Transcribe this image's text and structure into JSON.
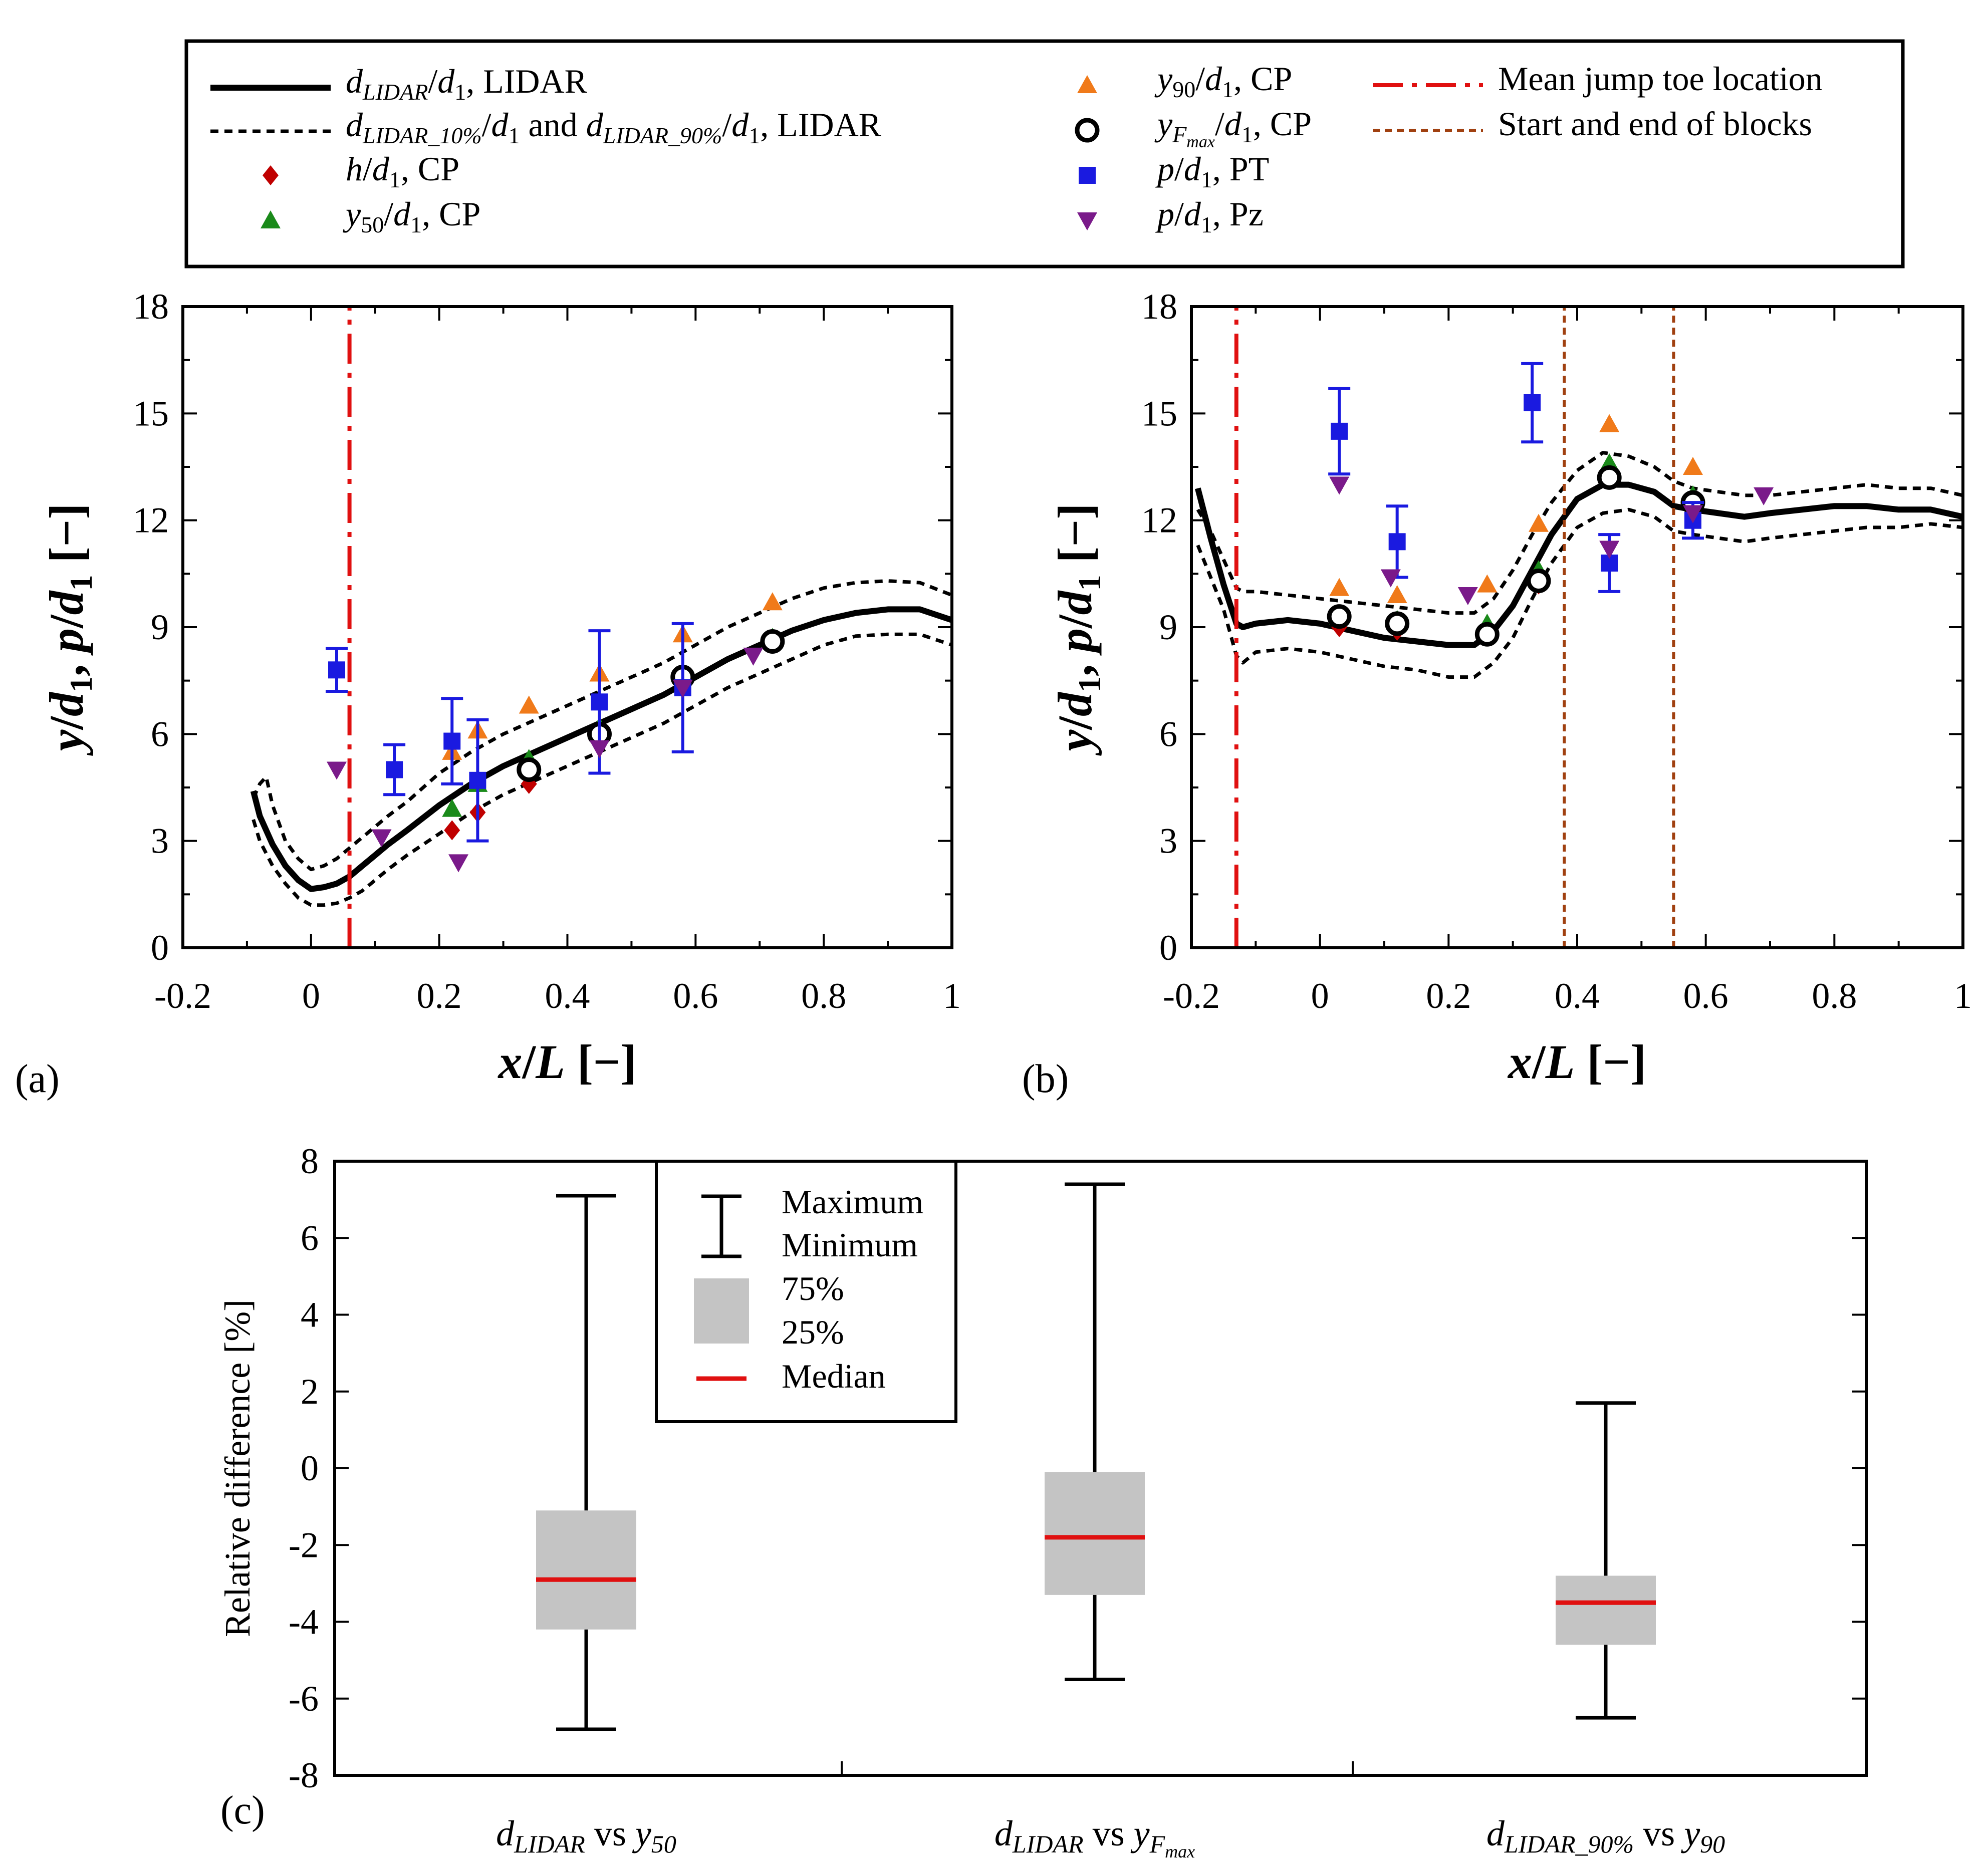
{
  "legend": {
    "entries": [
      {
        "key": "dLIDAR",
        "html": "<tspan font-style='italic'>d</tspan><tspan font-style='italic' font-size='46' dy='14'>LIDAR</tspan><tspan dy='-14'>/</tspan><tspan font-style='italic'>d</tspan><tspan font-size='46' dy='14'>1</tspan><tspan dy='-14'>, LIDAR</tspan>",
        "style": "solid"
      },
      {
        "key": "dLIDAR_pct",
        "html": "<tspan font-style='italic'>d</tspan><tspan font-style='italic' font-size='46' dy='14'>LIDAR_10%</tspan><tspan dy='-14'>/</tspan><tspan font-style='italic'>d</tspan><tspan font-size='46' dy='14'>1</tspan><tspan dy='-14'> and </tspan><tspan font-style='italic'>d</tspan><tspan font-style='italic' font-size='46' dy='14'>LIDAR_90%</tspan><tspan dy='-14'>/</tspan><tspan font-style='italic'>d</tspan><tspan font-size='46' dy='14'>1</tspan><tspan dy='-14'>, LIDAR</tspan>",
        "style": "dotted"
      },
      {
        "key": "h",
        "html": "<tspan font-style='italic'>h</tspan>/<tspan font-style='italic'>d</tspan><tspan font-size='46' dy='14'>1</tspan><tspan dy='-14'>, CP</tspan>",
        "style": "diamond",
        "color": "#c00000"
      },
      {
        "key": "y50",
        "html": "<tspan font-style='italic'>y</tspan><tspan font-size='46' dy='14'>50</tspan><tspan dy='-14'>/</tspan><tspan font-style='italic'>d</tspan><tspan font-size='46' dy='14'>1</tspan><tspan dy='-14'>, CP</tspan>",
        "style": "triangle",
        "color": "#1a8a1a"
      },
      {
        "key": "y90",
        "html": "<tspan font-style='italic'>y</tspan><tspan font-size='46' dy='14'>90</tspan><tspan dy='-14'>/</tspan><tspan font-style='italic'>d</tspan><tspan font-size='46' dy='14'>1</tspan><tspan dy='-14'>, CP</tspan>",
        "style": "triangle",
        "color": "#f07a1a"
      },
      {
        "key": "yFmax",
        "html": "<tspan font-style='italic'>y</tspan><tspan font-style='italic' font-size='46' dy='14'>F</tspan><tspan font-style='italic' font-size='34' dy='10'>max</tspan><tspan dy='-24'>/</tspan><tspan font-style='italic'>d</tspan><tspan font-size='46' dy='14'>1</tspan><tspan dy='-14'>, CP</tspan>",
        "style": "circle",
        "color": "#000000"
      },
      {
        "key": "pPT",
        "html": "<tspan font-style='italic'>p</tspan>/<tspan font-style='italic'>d</tspan><tspan font-size='46' dy='14'>1</tspan><tspan dy='-14'>, PT</tspan>",
        "style": "square",
        "color": "#1a1ae0"
      },
      {
        "key": "pPz",
        "html": "<tspan font-style='italic'>p</tspan>/<tspan font-style='italic'>d</tspan><tspan font-size='46' dy='14'>1</tspan><tspan dy='-14'>, Pz</tspan>",
        "style": "triangle-down",
        "color": "#7a1a8a"
      },
      {
        "key": "toe",
        "html": "Mean jump toe location",
        "style": "dashdot",
        "color": "#e01010"
      },
      {
        "key": "blocks",
        "html": "Start and end of blocks",
        "style": "shortdash",
        "color": "#a04010"
      }
    ]
  },
  "chart_data": [
    {
      "panel": "(a)",
      "type": "line",
      "xlabel": "x/L [−]",
      "ylabel": "y/d1, p/d1 [−]",
      "xlim": [
        -0.2,
        1.0
      ],
      "ylim": [
        0,
        18
      ],
      "xticks": [
        "-0.2",
        "0",
        "0.2",
        "0.4",
        "0.6",
        "0.8",
        "1"
      ],
      "yticks": [
        "0",
        "3",
        "6",
        "9",
        "12",
        "15",
        "18"
      ],
      "series": [
        {
          "name": "dLIDAR",
          "x": [
            -0.09,
            -0.08,
            -0.06,
            -0.04,
            -0.02,
            0.0,
            0.02,
            0.04,
            0.06,
            0.08,
            0.1,
            0.12,
            0.15,
            0.2,
            0.25,
            0.3,
            0.35,
            0.4,
            0.45,
            0.5,
            0.55,
            0.6,
            0.65,
            0.7,
            0.75,
            0.8,
            0.85,
            0.9,
            0.95,
            1.0
          ],
          "y": [
            4.4,
            3.7,
            2.9,
            2.3,
            1.9,
            1.65,
            1.7,
            1.8,
            2.0,
            2.3,
            2.6,
            2.9,
            3.3,
            4.0,
            4.6,
            5.1,
            5.5,
            5.9,
            6.3,
            6.7,
            7.1,
            7.6,
            8.1,
            8.5,
            8.9,
            9.2,
            9.4,
            9.5,
            9.5,
            9.2
          ]
        },
        {
          "name": "dLIDAR_10%",
          "x": [
            -0.09,
            -0.08,
            -0.06,
            -0.04,
            -0.02,
            0.0,
            0.02,
            0.04,
            0.06,
            0.08,
            0.1,
            0.12,
            0.15,
            0.2,
            0.25,
            0.3,
            0.35,
            0.4,
            0.45,
            0.5,
            0.55,
            0.6,
            0.65,
            0.7,
            0.75,
            0.8,
            0.85,
            0.9,
            0.95,
            1.0
          ],
          "y": [
            3.6,
            3.0,
            2.3,
            1.8,
            1.4,
            1.2,
            1.2,
            1.25,
            1.4,
            1.6,
            1.9,
            2.2,
            2.6,
            3.2,
            3.8,
            4.3,
            4.7,
            5.1,
            5.5,
            5.9,
            6.3,
            6.8,
            7.3,
            7.7,
            8.1,
            8.5,
            8.75,
            8.8,
            8.8,
            8.5
          ]
        },
        {
          "name": "dLIDAR_90%",
          "x": [
            -0.09,
            -0.08,
            -0.07,
            -0.06,
            -0.04,
            -0.02,
            0.0,
            0.02,
            0.04,
            0.06,
            0.08,
            0.1,
            0.12,
            0.15,
            0.2,
            0.25,
            0.3,
            0.35,
            0.4,
            0.45,
            0.5,
            0.55,
            0.6,
            0.65,
            0.7,
            0.75,
            0.8,
            0.85,
            0.9,
            0.95,
            1.0
          ],
          "y": [
            4.2,
            4.6,
            4.8,
            4.0,
            3.0,
            2.5,
            2.2,
            2.3,
            2.5,
            2.8,
            3.1,
            3.4,
            3.7,
            4.1,
            4.9,
            5.5,
            6.0,
            6.4,
            6.8,
            7.2,
            7.6,
            8.0,
            8.5,
            9.0,
            9.4,
            9.8,
            10.1,
            10.25,
            10.3,
            10.25,
            9.9
          ]
        },
        {
          "name": "h",
          "x": [
            0.22,
            0.26,
            0.34,
            0.45,
            0.58,
            0.72
          ],
          "y": [
            3.3,
            3.8,
            4.6,
            6.0,
            7.5,
            8.6
          ]
        },
        {
          "name": "y50",
          "x": [
            0.22,
            0.26,
            0.34,
            0.45,
            0.58,
            0.72
          ],
          "y": [
            3.9,
            4.6,
            5.3,
            6.2,
            7.7,
            8.7
          ]
        },
        {
          "name": "y90",
          "x": [
            0.22,
            0.26,
            0.34,
            0.45,
            0.58,
            0.72
          ],
          "y": [
            5.5,
            6.1,
            6.8,
            7.7,
            8.8,
            9.7
          ]
        },
        {
          "name": "yFmax",
          "x": [
            0.34,
            0.45,
            0.58,
            0.72
          ],
          "y": [
            5.0,
            6.0,
            7.6,
            8.6
          ]
        },
        {
          "name": "pPT",
          "x": [
            0.04,
            0.13,
            0.22,
            0.26,
            0.45,
            0.58
          ],
          "y": [
            7.8,
            5.0,
            5.8,
            4.7,
            6.9,
            7.3
          ],
          "err": [
            0.6,
            0.7,
            1.2,
            1.7,
            2.0,
            1.8
          ]
        },
        {
          "name": "pPz",
          "x": [
            0.04,
            0.11,
            0.23,
            0.45,
            0.58,
            0.69
          ],
          "y": [
            5.0,
            3.1,
            2.4,
            5.6,
            7.3,
            8.2
          ]
        },
        {
          "name": "toe",
          "x": [
            0.06,
            0.06
          ],
          "y": [
            0,
            18
          ]
        }
      ]
    },
    {
      "panel": "(b)",
      "type": "line",
      "xlabel": "x/L [−]",
      "ylabel": "y/d1, p/d1 [−]",
      "xlim": [
        -0.2,
        1.0
      ],
      "ylim": [
        0,
        18
      ],
      "xticks": [
        "-0.2",
        "0",
        "0.2",
        "0.4",
        "0.6",
        "0.8",
        "1"
      ],
      "yticks": [
        "0",
        "3",
        "6",
        "9",
        "12",
        "15",
        "18"
      ],
      "series": [
        {
          "name": "dLIDAR",
          "x": [
            -0.19,
            -0.17,
            -0.15,
            -0.13,
            -0.12,
            -0.1,
            -0.05,
            0.0,
            0.05,
            0.1,
            0.15,
            0.2,
            0.24,
            0.27,
            0.3,
            0.33,
            0.36,
            0.4,
            0.44,
            0.48,
            0.52,
            0.55,
            0.58,
            0.62,
            0.66,
            0.7,
            0.75,
            0.8,
            0.85,
            0.9,
            0.95,
            1.0
          ],
          "y": [
            12.9,
            11.5,
            10.2,
            9.1,
            9.0,
            9.1,
            9.2,
            9.1,
            8.9,
            8.7,
            8.6,
            8.5,
            8.5,
            8.9,
            9.6,
            10.6,
            11.6,
            12.6,
            13.0,
            13.0,
            12.8,
            12.4,
            12.3,
            12.2,
            12.1,
            12.2,
            12.3,
            12.4,
            12.4,
            12.3,
            12.3,
            12.1
          ]
        },
        {
          "name": "dLIDAR_10%",
          "x": [
            -0.19,
            -0.17,
            -0.15,
            -0.13,
            -0.12,
            -0.1,
            -0.05,
            0.0,
            0.05,
            0.1,
            0.15,
            0.2,
            0.24,
            0.27,
            0.3,
            0.33,
            0.36,
            0.4,
            0.44,
            0.48,
            0.52,
            0.55,
            0.58,
            0.62,
            0.66,
            0.7,
            0.75,
            0.8,
            0.85,
            0.9,
            0.95,
            1.0
          ],
          "y": [
            11.3,
            10.4,
            9.5,
            8.2,
            8.0,
            8.3,
            8.4,
            8.3,
            8.1,
            7.9,
            7.8,
            7.6,
            7.6,
            8.0,
            8.7,
            9.8,
            10.8,
            11.8,
            12.2,
            12.3,
            12.1,
            11.7,
            11.6,
            11.5,
            11.4,
            11.5,
            11.6,
            11.7,
            11.8,
            11.8,
            11.9,
            11.8
          ]
        },
        {
          "name": "dLIDAR_90%",
          "x": [
            -0.19,
            -0.17,
            -0.15,
            -0.13,
            -0.12,
            -0.1,
            -0.05,
            0.0,
            0.05,
            0.1,
            0.15,
            0.2,
            0.24,
            0.27,
            0.3,
            0.33,
            0.36,
            0.4,
            0.44,
            0.48,
            0.52,
            0.55,
            0.58,
            0.62,
            0.66,
            0.7,
            0.75,
            0.8,
            0.85,
            0.9,
            0.95,
            1.0
          ],
          "y": [
            12.3,
            11.7,
            10.9,
            10.1,
            10.0,
            10.0,
            9.9,
            9.8,
            9.7,
            9.6,
            9.5,
            9.4,
            9.4,
            9.8,
            10.6,
            11.6,
            12.5,
            13.4,
            13.9,
            13.8,
            13.5,
            13.1,
            12.9,
            12.8,
            12.7,
            12.7,
            12.8,
            12.9,
            13.0,
            12.9,
            12.9,
            12.7
          ]
        },
        {
          "name": "h",
          "x": [
            0.03,
            0.12,
            0.26,
            0.34,
            0.45,
            0.58
          ],
          "y": [
            9.0,
            8.9,
            8.8,
            10.2,
            13.2,
            12.4
          ]
        },
        {
          "name": "y50",
          "x": [
            0.03,
            0.12,
            0.26,
            0.34,
            0.45,
            0.58
          ],
          "y": [
            9.3,
            9.2,
            9.1,
            10.6,
            13.6,
            12.7
          ]
        },
        {
          "name": "y90",
          "x": [
            0.03,
            0.12,
            0.26,
            0.34,
            0.45,
            0.58
          ],
          "y": [
            10.1,
            9.9,
            10.2,
            11.9,
            14.7,
            13.5
          ]
        },
        {
          "name": "yFmax",
          "x": [
            0.03,
            0.12,
            0.26,
            0.34,
            0.45,
            0.58
          ],
          "y": [
            9.3,
            9.1,
            8.8,
            10.3,
            13.2,
            12.5
          ]
        },
        {
          "name": "pPT",
          "x": [
            0.03,
            0.12,
            0.33,
            0.45,
            0.58
          ],
          "y": [
            14.5,
            11.4,
            15.3,
            10.8,
            12.0
          ],
          "err": [
            1.2,
            1.0,
            1.1,
            0.8,
            0.5
          ]
        },
        {
          "name": "pPz",
          "x": [
            0.03,
            0.11,
            0.23,
            0.45,
            0.58,
            0.69
          ],
          "y": [
            13.0,
            10.4,
            9.9,
            11.2,
            12.2,
            12.7
          ]
        },
        {
          "name": "toe",
          "x": [
            -0.13,
            -0.13
          ],
          "y": [
            0,
            18
          ]
        },
        {
          "name": "blocks_start",
          "x": [
            0.38,
            0.38
          ],
          "y": [
            0,
            18
          ]
        },
        {
          "name": "blocks_end",
          "x": [
            0.55,
            0.55
          ],
          "y": [
            0,
            18
          ]
        }
      ]
    },
    {
      "panel": "(c)",
      "type": "box",
      "ylabel": "Relative difference [%]",
      "ylim": [
        -8,
        8
      ],
      "yticks": [
        "-8",
        "-6",
        "-4",
        "-2",
        "0",
        "2",
        "4",
        "6",
        "8"
      ],
      "categories": [
        {
          "key": "c1",
          "html": "<tspan font-style='italic'>d</tspan><tspan font-style='italic' font-size='50' dy='14'>LIDAR</tspan><tspan dy='-14'> vs </tspan><tspan font-style='italic'>y</tspan><tspan font-style='italic' font-size='50' dy='14'>50</tspan>"
        },
        {
          "key": "c2",
          "html": "<tspan font-style='italic'>d</tspan><tspan font-style='italic' font-size='50' dy='14'>LIDAR</tspan><tspan dy='-14'>  vs </tspan><tspan font-style='italic'>y</tspan><tspan font-style='italic' font-size='50' dy='14'>F</tspan><tspan font-style='italic' font-size='36' dy='10'>max</tspan>"
        },
        {
          "key": "c3",
          "html": "<tspan font-style='italic'>d</tspan><tspan font-style='italic' font-size='50' dy='14'>LIDAR_90%</tspan><tspan dy='-14'>  vs </tspan><tspan font-style='italic'>y</tspan><tspan font-style='italic' font-size='50' dy='14'>90</tspan>"
        }
      ],
      "boxes": [
        {
          "max": 7.1,
          "q3": -1.1,
          "median": -2.9,
          "q1": -4.2,
          "min": -6.8
        },
        {
          "max": 7.4,
          "q3": -0.1,
          "median": -1.8,
          "q1": -3.3,
          "min": -5.5
        },
        {
          "max": 1.7,
          "q3": -2.8,
          "median": -3.5,
          "q1": -4.6,
          "min": -6.5
        }
      ],
      "legend": [
        {
          "key": "max",
          "label": "Maximum"
        },
        {
          "key": "min",
          "label": "Minimum"
        },
        {
          "key": "q3",
          "label": "75%"
        },
        {
          "key": "q1",
          "label": "25%"
        },
        {
          "key": "median",
          "label": "Median"
        }
      ]
    }
  ],
  "panel_labels": {
    "a": "(a)",
    "b": "(b)",
    "c": "(c)"
  }
}
